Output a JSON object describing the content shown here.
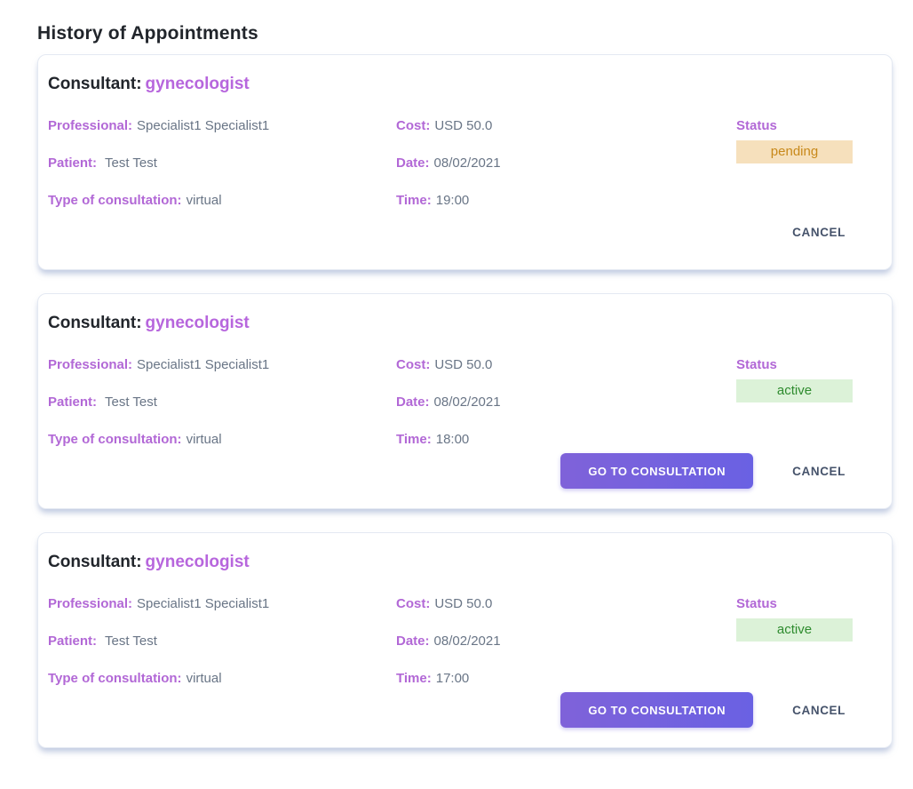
{
  "page": {
    "title": "History of Appointments"
  },
  "labels": {
    "consultant": "Consultant:",
    "professional": "Professional:",
    "patient": "Patient:",
    "type": "Type of consultation:",
    "cost": "Cost:",
    "date": "Date:",
    "time": "Time:",
    "status": "Status",
    "cancel": "CANCEL",
    "go_to_consultation": "GO TO CONSULTATION"
  },
  "colors": {
    "accent_purple": "#b268d6",
    "consultant_name_purple": "#b766dd",
    "value_gray": "#697586",
    "pending_badge_bg": "#f6e0bc",
    "pending_badge_text": "#c8891a",
    "active_badge_bg": "#dcf2d8",
    "active_badge_text": "#2e8b2e",
    "go_button_gradient_start": "#7f62d9",
    "go_button_gradient_end": "#6a61e3",
    "cancel_text": "#46536b"
  },
  "appointments": [
    {
      "consultant": "gynecologist",
      "professional": "Specialist1 Specialist1",
      "patient": "Test Test",
      "type_of_consultation": "virtual",
      "cost": "USD 50.0",
      "date": "08/02/2021",
      "time": "19:00",
      "status": "pending"
    },
    {
      "consultant": "gynecologist",
      "professional": "Specialist1 Specialist1",
      "patient": "Test Test",
      "type_of_consultation": "virtual",
      "cost": "USD 50.0",
      "date": "08/02/2021",
      "time": "18:00",
      "status": "active"
    },
    {
      "consultant": "gynecologist",
      "professional": "Specialist1 Specialist1",
      "patient": "Test Test",
      "type_of_consultation": "virtual",
      "cost": "USD 50.0",
      "date": "08/02/2021",
      "time": "17:00",
      "status": "active"
    }
  ]
}
